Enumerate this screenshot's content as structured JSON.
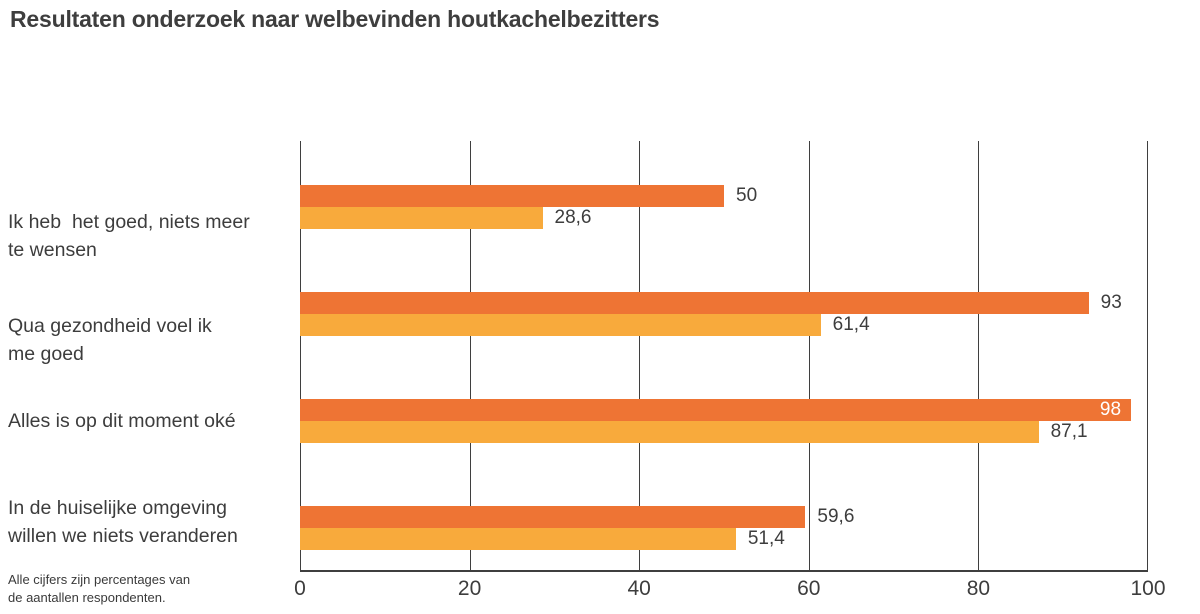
{
  "title": "Resultaten onderzoek naar welbevinden houtkachelbezitters",
  "footnote": "Alle cijfers zijn percentages van\nde aantallen respondenten.",
  "colors": {
    "series_dark_orange": "#ee7434",
    "series_light_orange": "#f8aa3c",
    "gridline": "#3f3f3f",
    "text": "#3d3d3d",
    "inside_label_text": "#ffffff",
    "background": "#ffffff"
  },
  "chart_data": {
    "type": "bar",
    "orientation": "horizontal",
    "title": "Resultaten onderzoek naar welbevinden houtkachelbezitters",
    "categories": [
      "Ik heb  het goed, niets meer\nte wensen",
      "Qua gezondheid voel ik\nme goed",
      "Alles is op dit moment oké",
      "In de huiselijke omgeving\nwillen we niets veranderen"
    ],
    "series": [
      {
        "name": "series-1-dark-orange",
        "color": "#ee7434",
        "values": [
          50,
          93,
          98,
          59.6
        ],
        "labels": [
          "50",
          "93",
          "98",
          "59,6"
        ],
        "labels_inside": [
          false,
          false,
          true,
          false
        ]
      },
      {
        "name": "series-2-light-orange",
        "color": "#f8aa3c",
        "values": [
          28.6,
          61.4,
          87.1,
          51.4
        ],
        "labels": [
          "28,6",
          "61,4",
          "87,1",
          "51,4"
        ],
        "labels_inside": [
          false,
          false,
          false,
          false
        ]
      }
    ],
    "xlim": [
      0,
      100
    ],
    "xticks": [
      0,
      20,
      40,
      60,
      80,
      100
    ],
    "xtick_labels": [
      "0",
      "20",
      "40",
      "60",
      "80",
      "100"
    ],
    "grid": "vertical-only",
    "legend": "none",
    "value_label_position": "right-of-bar; value 98 rendered inside bar in white"
  }
}
